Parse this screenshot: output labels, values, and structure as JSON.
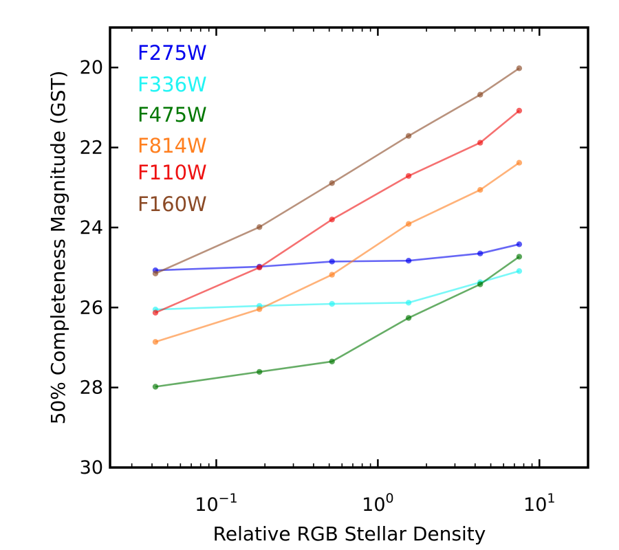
{
  "chart_data": {
    "type": "line",
    "title": "",
    "xlabel": "Relative RGB Stellar Density",
    "ylabel": "50% Completeness Magnitude (GST)",
    "xscale": "log",
    "xlim": [
      0.022,
      20
    ],
    "ylim": [
      30,
      19
    ],
    "y_inverted": true,
    "grid": false,
    "legend_position": "top-left",
    "x": [
      0.042,
      0.185,
      0.52,
      1.55,
      4.3,
      7.5
    ],
    "x_ticks": [
      {
        "value": 0.1,
        "base": "10",
        "exp": "−1"
      },
      {
        "value": 1,
        "base": "10",
        "exp": "0"
      },
      {
        "value": 10,
        "base": "10",
        "exp": "1"
      }
    ],
    "y_ticks": [
      {
        "value": 20,
        "label": "20"
      },
      {
        "value": 22,
        "label": "22"
      },
      {
        "value": 24,
        "label": "24"
      },
      {
        "value": 26,
        "label": "26"
      },
      {
        "value": 28,
        "label": "28"
      },
      {
        "value": 30,
        "label": "30"
      }
    ],
    "series": [
      {
        "name": "F275W",
        "color": "#0000ee",
        "values": [
          25.07,
          24.98,
          24.85,
          24.83,
          24.65,
          24.42
        ]
      },
      {
        "name": "F336W",
        "color": "#22f4f4",
        "values": [
          26.05,
          25.96,
          25.91,
          25.88,
          25.37,
          25.09
        ]
      },
      {
        "name": "F475W",
        "color": "#007700",
        "values": [
          27.98,
          27.61,
          27.35,
          26.26,
          25.42,
          24.73
        ]
      },
      {
        "name": "F814W",
        "color": "#ff7f1f",
        "values": [
          26.86,
          26.04,
          25.18,
          23.91,
          23.06,
          22.38
        ]
      },
      {
        "name": "F110W",
        "color": "#ee1111",
        "values": [
          26.13,
          25.0,
          23.8,
          22.71,
          21.88,
          21.08
        ]
      },
      {
        "name": "F160W",
        "color": "#8b4a26",
        "values": [
          25.15,
          23.99,
          22.89,
          21.71,
          20.68,
          20.02
        ]
      }
    ]
  }
}
